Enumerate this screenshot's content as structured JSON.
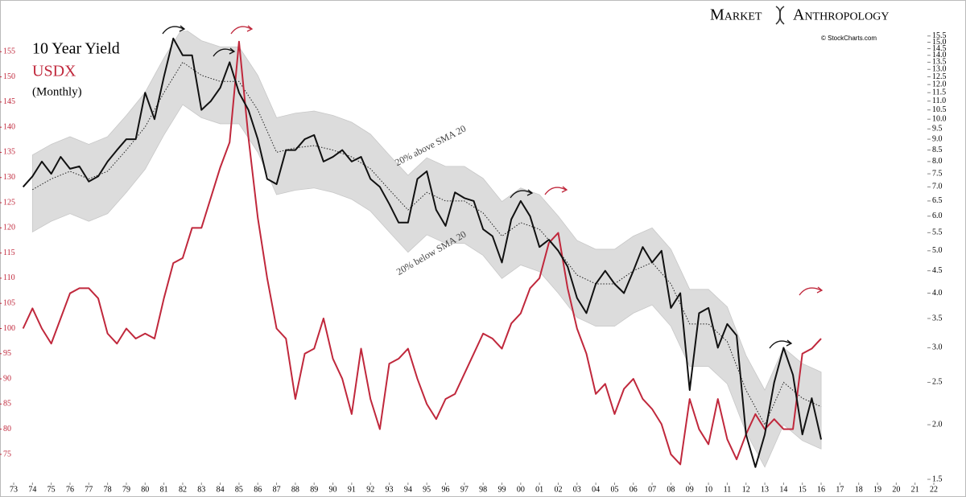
{
  "chart_data": {
    "type": "line",
    "brand": [
      "Market",
      "Anthropology"
    ],
    "source": "© StockCharts.com",
    "subtitle": "(Monthly)",
    "annotations": [
      "20% above SMA 20",
      "20% below SMA 20"
    ],
    "x": [
      1973.5,
      1974,
      1974.5,
      1975,
      1975.5,
      1976,
      1976.5,
      1977,
      1977.5,
      1978,
      1978.5,
      1979,
      1979.5,
      1980,
      1980.5,
      1981,
      1981.5,
      1982,
      1982.5,
      1983,
      1983.5,
      1984,
      1984.5,
      1985,
      1985.5,
      1986,
      1986.5,
      1987,
      1987.5,
      1988,
      1988.5,
      1989,
      1989.5,
      1990,
      1990.5,
      1991,
      1991.5,
      1992,
      1992.5,
      1993,
      1993.5,
      1994,
      1994.5,
      1995,
      1995.5,
      1996,
      1996.5,
      1997,
      1997.5,
      1998,
      1998.5,
      1999,
      1999.5,
      2000,
      2000.5,
      2001,
      2001.5,
      2002,
      2002.5,
      2003,
      2003.5,
      2004,
      2004.5,
      2005,
      2005.5,
      2006,
      2006.5,
      2007,
      2007.5,
      2008,
      2008.5,
      2009,
      2009.5,
      2010,
      2010.5,
      2011,
      2011.5,
      2012,
      2012.5,
      2013,
      2013.5,
      2014,
      2014.5,
      2015,
      2015.5,
      2016
    ],
    "series": [
      {
        "name": "10 Year Yield",
        "color": "#111111",
        "axis": "y2",
        "values": [
          7.0,
          7.4,
          8.0,
          7.5,
          8.2,
          7.7,
          7.8,
          7.2,
          7.4,
          8.0,
          8.5,
          9.0,
          9.0,
          11.5,
          10.0,
          12.5,
          15.3,
          14.0,
          14.0,
          10.5,
          11.0,
          11.8,
          13.5,
          11.5,
          10.5,
          9.0,
          7.3,
          7.1,
          8.5,
          8.5,
          9.0,
          9.2,
          8.0,
          8.2,
          8.5,
          8.0,
          8.2,
          7.3,
          7.0,
          6.4,
          5.8,
          5.8,
          7.3,
          7.6,
          6.2,
          5.7,
          6.8,
          6.6,
          6.5,
          5.6,
          5.4,
          4.7,
          5.9,
          6.5,
          6.0,
          5.1,
          5.3,
          5.0,
          4.6,
          3.9,
          3.6,
          4.2,
          4.5,
          4.2,
          4.0,
          4.5,
          5.1,
          4.7,
          5.0,
          3.7,
          4.0,
          2.4,
          3.6,
          3.7,
          3.0,
          3.4,
          3.2,
          1.9,
          1.6,
          1.9,
          2.5,
          3.0,
          2.6,
          1.9,
          2.3,
          1.85
        ]
      },
      {
        "name": "USDX",
        "color": "#c0283c",
        "axis": "y",
        "values": [
          100,
          104,
          100,
          97,
          102,
          107,
          108,
          108,
          106,
          99,
          97,
          100,
          98,
          99,
          98,
          106,
          113,
          114,
          120,
          120,
          126,
          132,
          137,
          157,
          138,
          122,
          110,
          100,
          98,
          86,
          95,
          96,
          102,
          94,
          90,
          83,
          96,
          86,
          80,
          93,
          94,
          96,
          90,
          85,
          82,
          86,
          87,
          91,
          95,
          99,
          98,
          96,
          101,
          103,
          108,
          110,
          117,
          119,
          108,
          100,
          95,
          87,
          89,
          83,
          88,
          90,
          86,
          84,
          81,
          75,
          73,
          86,
          80,
          77,
          86,
          78,
          74,
          79,
          83,
          80,
          82,
          80,
          80,
          95,
          96,
          98
        ]
      }
    ],
    "band": {
      "color": "#dcdcdc",
      "x": [
        1974,
        1975,
        1976,
        1977,
        1978,
        1979,
        1980,
        1981,
        1982,
        1983,
        1984,
        1985,
        1986,
        1987,
        1988,
        1989,
        1990,
        1991,
        1992,
        1993,
        1994,
        1995,
        1996,
        1997,
        1998,
        1999,
        2000,
        2001,
        2002,
        2003,
        2004,
        2005,
        2006,
        2007,
        2008,
        2009,
        2010,
        2011,
        2012,
        2013,
        2014,
        2015,
        2016
      ],
      "sma": [
        6.9,
        7.3,
        7.6,
        7.3,
        7.6,
        8.5,
        9.6,
        11.5,
        13.5,
        12.6,
        12.2,
        12.2,
        10.5,
        8.4,
        8.6,
        8.7,
        8.5,
        8.2,
        7.7,
        6.9,
        6.2,
        6.8,
        6.5,
        6.5,
        6.1,
        5.4,
        5.8,
        5.6,
        5.0,
        4.4,
        4.2,
        4.2,
        4.5,
        4.7,
        4.2,
        3.4,
        3.4,
        3.1,
        2.4,
        2.0,
        2.5,
        2.3,
        2.2
      ],
      "upper": [
        8.28,
        8.76,
        9.12,
        8.76,
        9.12,
        10.2,
        11.52,
        13.8,
        16.2,
        15.12,
        14.64,
        14.64,
        12.6,
        10.08,
        10.32,
        10.44,
        10.2,
        9.84,
        9.24,
        8.28,
        7.44,
        8.16,
        7.8,
        7.8,
        7.32,
        6.48,
        6.96,
        6.72,
        6.0,
        5.28,
        5.04,
        5.04,
        5.4,
        5.64,
        5.04,
        4.08,
        4.08,
        3.72,
        2.88,
        2.4,
        3.0,
        2.76,
        2.64
      ],
      "lower": [
        5.52,
        5.84,
        6.08,
        5.84,
        6.08,
        6.8,
        7.68,
        9.2,
        10.8,
        10.08,
        9.76,
        9.76,
        8.4,
        6.72,
        6.88,
        6.96,
        6.8,
        6.56,
        6.16,
        5.52,
        4.96,
        5.44,
        5.2,
        5.2,
        4.88,
        4.32,
        4.64,
        4.48,
        4.0,
        3.52,
        3.36,
        3.36,
        3.6,
        3.76,
        3.36,
        2.72,
        2.72,
        2.48,
        1.92,
        1.6,
        2.0,
        1.84,
        1.76
      ]
    },
    "xlim": [
      1973,
      2022
    ],
    "xticks": [
      {
        "value": 1973,
        "label": "73"
      },
      {
        "value": 1974,
        "label": "74"
      },
      {
        "value": 1975,
        "label": "75"
      },
      {
        "value": 1976,
        "label": "76"
      },
      {
        "value": 1977,
        "label": "77"
      },
      {
        "value": 1978,
        "label": "78"
      },
      {
        "value": 1979,
        "label": "79"
      },
      {
        "value": 1980,
        "label": "80"
      },
      {
        "value": 1981,
        "label": "81"
      },
      {
        "value": 1982,
        "label": "82"
      },
      {
        "value": 1983,
        "label": "83"
      },
      {
        "value": 1984,
        "label": "84"
      },
      {
        "value": 1985,
        "label": "85"
      },
      {
        "value": 1986,
        "label": "86"
      },
      {
        "value": 1987,
        "label": "87"
      },
      {
        "value": 1988,
        "label": "88"
      },
      {
        "value": 1989,
        "label": "89"
      },
      {
        "value": 1990,
        "label": "90"
      },
      {
        "value": 1991,
        "label": "91"
      },
      {
        "value": 1992,
        "label": "92"
      },
      {
        "value": 1993,
        "label": "93"
      },
      {
        "value": 1994,
        "label": "94"
      },
      {
        "value": 1995,
        "label": "95"
      },
      {
        "value": 1996,
        "label": "96"
      },
      {
        "value": 1997,
        "label": "97"
      },
      {
        "value": 1998,
        "label": "98"
      },
      {
        "value": 1999,
        "label": "99"
      },
      {
        "value": 2000,
        "label": "00"
      },
      {
        "value": 2001,
        "label": "01"
      },
      {
        "value": 2002,
        "label": "02"
      },
      {
        "value": 2003,
        "label": "03"
      },
      {
        "value": 2004,
        "label": "04"
      },
      {
        "value": 2005,
        "label": "05"
      },
      {
        "value": 2006,
        "label": "06"
      },
      {
        "value": 2007,
        "label": "07"
      },
      {
        "value": 2008,
        "label": "08"
      },
      {
        "value": 2009,
        "label": "09"
      },
      {
        "value": 2010,
        "label": "10"
      },
      {
        "value": 2011,
        "label": "11"
      },
      {
        "value": 2012,
        "label": "12"
      },
      {
        "value": 2013,
        "label": "13"
      },
      {
        "value": 2014,
        "label": "14"
      },
      {
        "value": 2015,
        "label": "15"
      },
      {
        "value": 2016,
        "label": "16"
      },
      {
        "value": 2017,
        "label": "17"
      },
      {
        "value": 2018,
        "label": "18"
      },
      {
        "value": 2019,
        "label": "19"
      },
      {
        "value": 2020,
        "label": "20"
      },
      {
        "value": 2021,
        "label": "21"
      },
      {
        "value": 2022,
        "label": "22"
      }
    ],
    "ylim": [
      69.4,
      159.2
    ],
    "yticks": [
      75,
      80,
      85,
      90,
      95,
      100,
      105,
      110,
      115,
      120,
      125,
      130,
      135,
      140,
      145,
      150,
      155
    ],
    "ytick_color": "#c0283c",
    "y2lim": [
      1.475,
      15.95
    ],
    "y2log": true,
    "y2ticks": [
      1.5,
      {
        "value": 2,
        "label": "2.0"
      },
      2.5,
      {
        "value": 3,
        "label": "3.0"
      },
      3.5,
      {
        "value": 4,
        "label": "4.0"
      },
      4.5,
      {
        "value": 5,
        "label": "5.0"
      },
      5.5,
      {
        "value": 6,
        "label": "6.0"
      },
      6.5,
      {
        "value": 7,
        "label": "7.0"
      },
      7.5,
      {
        "value": 8,
        "label": "8.0"
      },
      8.5,
      {
        "value": 9,
        "label": "9.0"
      },
      9.5,
      {
        "value": 10,
        "label": "10.0"
      },
      10.5,
      {
        "value": 11,
        "label": "11.0"
      },
      11.5,
      {
        "value": 12,
        "label": "12.0"
      },
      12.5,
      {
        "value": 13,
        "label": "13.0"
      },
      13.5,
      {
        "value": 14,
        "label": "14.0"
      },
      14.5,
      {
        "value": 15,
        "label": "15.0"
      },
      15.5
    ]
  }
}
